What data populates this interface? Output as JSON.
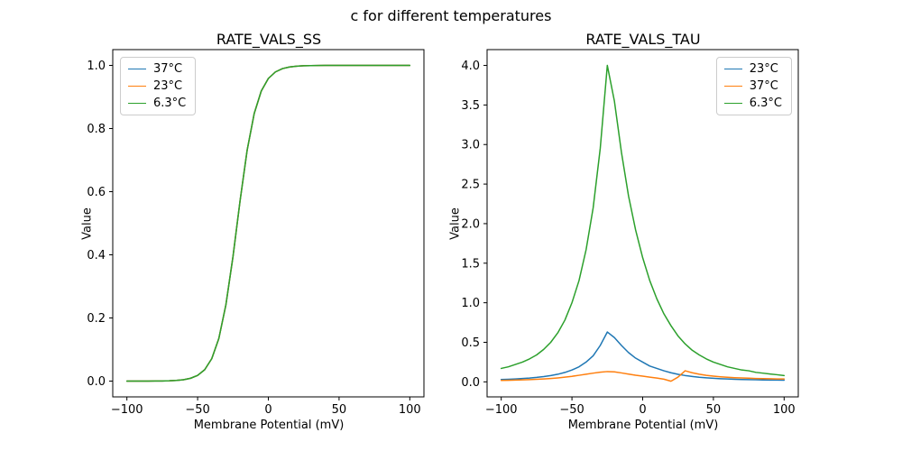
{
  "figure": {
    "suptitle": "c for different temperatures",
    "background": "#ffffff"
  },
  "chart_data": [
    {
      "type": "line",
      "title": "RATE_VALS_SS",
      "xlabel": "Membrane Potential (mV)",
      "ylabel": "Value",
      "legend_loc": "upper left",
      "grid": false,
      "xlim": [
        -110,
        110
      ],
      "ylim": [
        -0.05,
        1.05
      ],
      "xticks": {
        "values": [
          -100,
          -50,
          0,
          50,
          100
        ],
        "labels": [
          "−100",
          "−50",
          "0",
          "50",
          "100"
        ]
      },
      "yticks": {
        "values": [
          0,
          0.2,
          0.4,
          0.6,
          0.8,
          1.0
        ],
        "labels": [
          "0.0",
          "0.2",
          "0.4",
          "0.6",
          "0.8",
          "1.0"
        ]
      },
      "x": [
        -100,
        -95,
        -90,
        -85,
        -80,
        -75,
        -70,
        -65,
        -60,
        -55,
        -50,
        -45,
        -40,
        -35,
        -30,
        -25,
        -20,
        -15,
        -10,
        -5,
        0,
        5,
        10,
        15,
        20,
        25,
        30,
        35,
        40,
        45,
        50,
        55,
        60,
        65,
        70,
        75,
        80,
        85,
        90,
        95,
        100
      ],
      "series": [
        {
          "name": "37°C",
          "color": "#1f77b4",
          "values": [
            0.0,
            0.0,
            0.0001,
            0.0001,
            0.0003,
            0.0005,
            0.001,
            0.0021,
            0.0044,
            0.0089,
            0.018,
            0.0361,
            0.071,
            0.135,
            0.2418,
            0.3944,
            0.5709,
            0.7311,
            0.8474,
            0.919,
            0.9586,
            0.9793,
            0.9898,
            0.995,
            0.9975,
            0.9988,
            0.9994,
            0.9997,
            0.9999,
            0.9999,
            1.0,
            1.0,
            1.0,
            1.0,
            1.0,
            1.0,
            1.0,
            1.0,
            1.0,
            1.0,
            1.0
          ]
        },
        {
          "name": "23°C",
          "color": "#ff7f0e",
          "values": [
            0.0,
            0.0,
            0.0001,
            0.0001,
            0.0003,
            0.0005,
            0.001,
            0.0021,
            0.0044,
            0.0089,
            0.018,
            0.0361,
            0.071,
            0.135,
            0.2418,
            0.3944,
            0.5709,
            0.7311,
            0.8474,
            0.919,
            0.9586,
            0.9793,
            0.9898,
            0.995,
            0.9975,
            0.9988,
            0.9994,
            0.9997,
            0.9999,
            0.9999,
            1.0,
            1.0,
            1.0,
            1.0,
            1.0,
            1.0,
            1.0,
            1.0,
            1.0,
            1.0,
            1.0
          ]
        },
        {
          "name": "6.3°C",
          "color": "#2ca02c",
          "values": [
            0.0,
            0.0,
            0.0001,
            0.0001,
            0.0003,
            0.0005,
            0.001,
            0.0021,
            0.0044,
            0.0089,
            0.018,
            0.0361,
            0.071,
            0.135,
            0.2418,
            0.3944,
            0.5709,
            0.7311,
            0.8474,
            0.919,
            0.9586,
            0.9793,
            0.9898,
            0.995,
            0.9975,
            0.9988,
            0.9994,
            0.9997,
            0.9999,
            0.9999,
            1.0,
            1.0,
            1.0,
            1.0,
            1.0,
            1.0,
            1.0,
            1.0,
            1.0,
            1.0,
            1.0
          ]
        }
      ]
    },
    {
      "type": "line",
      "title": "RATE_VALS_TAU",
      "xlabel": "Membrane Potential (mV)",
      "ylabel": "Value",
      "legend_loc": "upper right",
      "grid": false,
      "xlim": [
        -110,
        110
      ],
      "ylim": [
        -0.19,
        4.2
      ],
      "xticks": {
        "values": [
          -100,
          -50,
          0,
          50,
          100
        ],
        "labels": [
          "−100",
          "−50",
          "0",
          "50",
          "100"
        ]
      },
      "yticks": {
        "values": [
          0,
          0.5,
          1.0,
          1.5,
          2.0,
          2.5,
          3.0,
          3.5,
          4.0
        ],
        "labels": [
          "0.0",
          "0.5",
          "1.0",
          "1.5",
          "2.0",
          "2.5",
          "3.0",
          "3.5",
          "4.0"
        ]
      },
      "x": [
        -100,
        -95,
        -90,
        -85,
        -80,
        -75,
        -70,
        -65,
        -60,
        -55,
        -50,
        -45,
        -40,
        -35,
        -30,
        -25,
        -20,
        -15,
        -10,
        -5,
        0,
        5,
        10,
        15,
        20,
        25,
        30,
        35,
        40,
        45,
        50,
        55,
        60,
        65,
        70,
        75,
        80,
        85,
        90,
        95,
        100
      ],
      "series": [
        {
          "name": "23°C",
          "color": "#1f77b4",
          "values": [
            0.03,
            0.033,
            0.037,
            0.042,
            0.048,
            0.056,
            0.066,
            0.079,
            0.096,
            0.119,
            0.15,
            0.19,
            0.25,
            0.33,
            0.46,
            0.63,
            0.56,
            0.46,
            0.37,
            0.3,
            0.25,
            0.2,
            0.17,
            0.14,
            0.115,
            0.095,
            0.08,
            0.068,
            0.058,
            0.051,
            0.045,
            0.04,
            0.036,
            0.033,
            0.03,
            0.028,
            0.026,
            0.024,
            0.023,
            0.022,
            0.021
          ]
        },
        {
          "name": "37°C",
          "color": "#ff7f0e",
          "values": [
            0.018,
            0.02,
            0.022,
            0.025,
            0.028,
            0.032,
            0.037,
            0.043,
            0.05,
            0.059,
            0.07,
            0.083,
            0.097,
            0.11,
            0.122,
            0.13,
            0.126,
            0.113,
            0.098,
            0.084,
            0.072,
            0.06,
            0.048,
            0.034,
            0.008,
            0.06,
            0.14,
            0.115,
            0.096,
            0.082,
            0.072,
            0.064,
            0.058,
            0.053,
            0.049,
            0.046,
            0.043,
            0.041,
            0.039,
            0.037,
            0.036
          ]
        },
        {
          "name": "6.3°C",
          "color": "#2ca02c",
          "values": [
            0.17,
            0.19,
            0.22,
            0.25,
            0.29,
            0.34,
            0.41,
            0.5,
            0.62,
            0.78,
            1.0,
            1.28,
            1.67,
            2.2,
            2.95,
            4.0,
            3.55,
            2.9,
            2.35,
            1.92,
            1.57,
            1.28,
            1.05,
            0.86,
            0.71,
            0.58,
            0.48,
            0.4,
            0.34,
            0.29,
            0.25,
            0.22,
            0.19,
            0.17,
            0.15,
            0.14,
            0.12,
            0.11,
            0.1,
            0.09,
            0.08
          ]
        }
      ]
    }
  ]
}
